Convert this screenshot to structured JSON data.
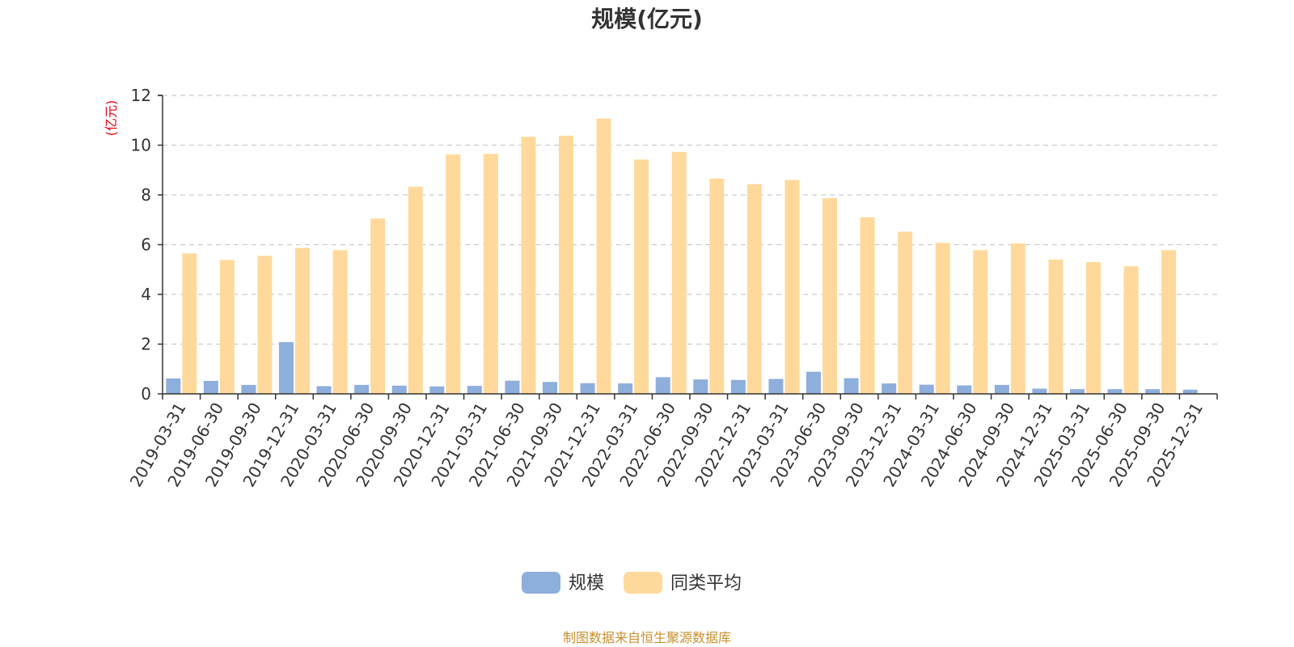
{
  "chart_data": {
    "type": "bar",
    "title": "规模(亿元)",
    "ylabel": "(亿元)",
    "ylim": [
      0,
      12
    ],
    "yticks": [
      0,
      2,
      4,
      6,
      8,
      10,
      12
    ],
    "grid": true,
    "legend_position": "bottom",
    "categories": [
      "2019-03-31",
      "2019-06-30",
      "2019-09-30",
      "2019-12-31",
      "2020-03-31",
      "2020-06-30",
      "2020-09-30",
      "2020-12-31",
      "2021-03-31",
      "2021-06-30",
      "2021-09-30",
      "2021-12-31",
      "2022-03-31",
      "2022-06-30",
      "2022-09-30",
      "2022-12-31",
      "2023-03-31",
      "2023-06-30",
      "2023-09-30",
      "2023-12-31",
      "2024-03-31",
      "2024-06-30",
      "2024-09-30",
      "2024-12-31",
      "2025-03-31",
      "2025-06-30",
      "2025-09-30",
      "2025-12-31"
    ],
    "series": [
      {
        "name": "规模",
        "color": "#8eaedc",
        "values": [
          0.62,
          0.52,
          0.36,
          2.08,
          0.31,
          0.36,
          0.33,
          0.3,
          0.32,
          0.53,
          0.48,
          0.43,
          0.42,
          0.67,
          0.58,
          0.56,
          0.6,
          0.89,
          0.63,
          0.42,
          0.37,
          0.34,
          0.36,
          0.21,
          0.19,
          0.19,
          0.19,
          0.17
        ]
      },
      {
        "name": "同类平均",
        "color": "#ffd99b",
        "values": [
          5.65,
          5.38,
          5.55,
          5.87,
          5.78,
          7.05,
          8.33,
          9.63,
          9.65,
          10.34,
          10.38,
          11.07,
          9.42,
          9.73,
          8.66,
          8.43,
          8.6,
          7.87,
          7.1,
          6.52,
          6.07,
          5.78,
          6.05,
          5.4,
          5.3,
          5.13,
          5.78,
          null
        ]
      }
    ]
  },
  "colors": {
    "unit_label": "#e60012",
    "source_text": "#c8902e",
    "grid": "#cccccc",
    "axis": "#333333"
  },
  "footer": {
    "source": "制图数据来自恒生聚源数据库"
  }
}
